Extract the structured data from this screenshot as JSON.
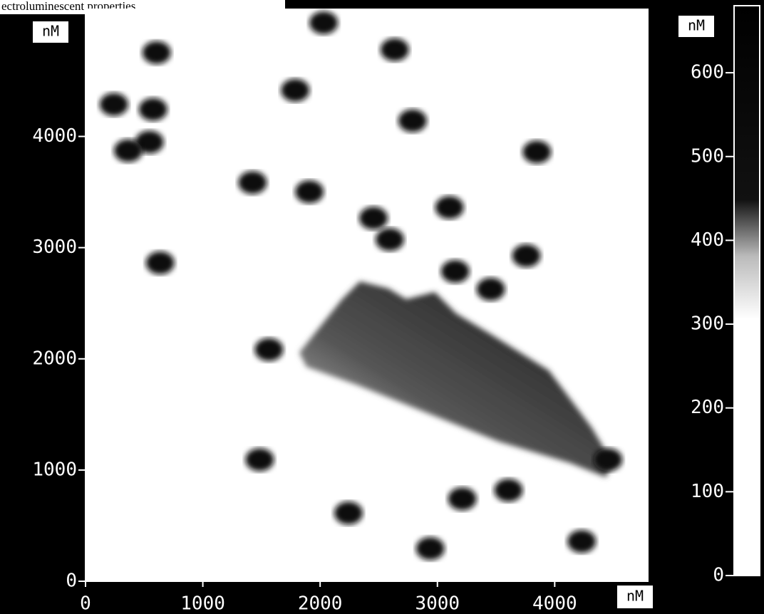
{
  "caption": "ectroluminescent properties.",
  "chart_data": {
    "type": "scatter",
    "xlim": [
      0,
      4800
    ],
    "ylim": [
      0,
      5150
    ],
    "xticks": [
      0,
      1000,
      2000,
      3000,
      4000
    ],
    "yticks": [
      0,
      1000,
      2000,
      3000,
      4000
    ],
    "x_unit": "nM",
    "y_unit": "nM",
    "series": [
      {
        "color": "#111111",
        "x": [
          606,
          2030,
          2636,
          1788,
          242,
          576,
          545,
          364,
          2788,
          1424,
          1909,
          3848,
          2455,
          2594,
          3103,
          636,
          3152,
          3455,
          3758,
          1564,
          1485,
          4455,
          3212,
          3606,
          2242,
          2939,
          4230
        ],
        "values": [
          4754,
          5022,
          4780,
          4415,
          4288,
          4243,
          3949,
          3872,
          4141,
          3585,
          3502,
          3860,
          3265,
          3073,
          3361,
          2863,
          2786,
          2626,
          2927,
          2083,
          1093,
          1093,
          741,
          818,
          613,
          294,
          358
        ]
      }
    ],
    "colorbar": {
      "unit": "nM",
      "lim": [
        0,
        680
      ],
      "ticks": [
        0,
        100,
        200,
        300,
        400,
        500,
        600
      ]
    }
  }
}
